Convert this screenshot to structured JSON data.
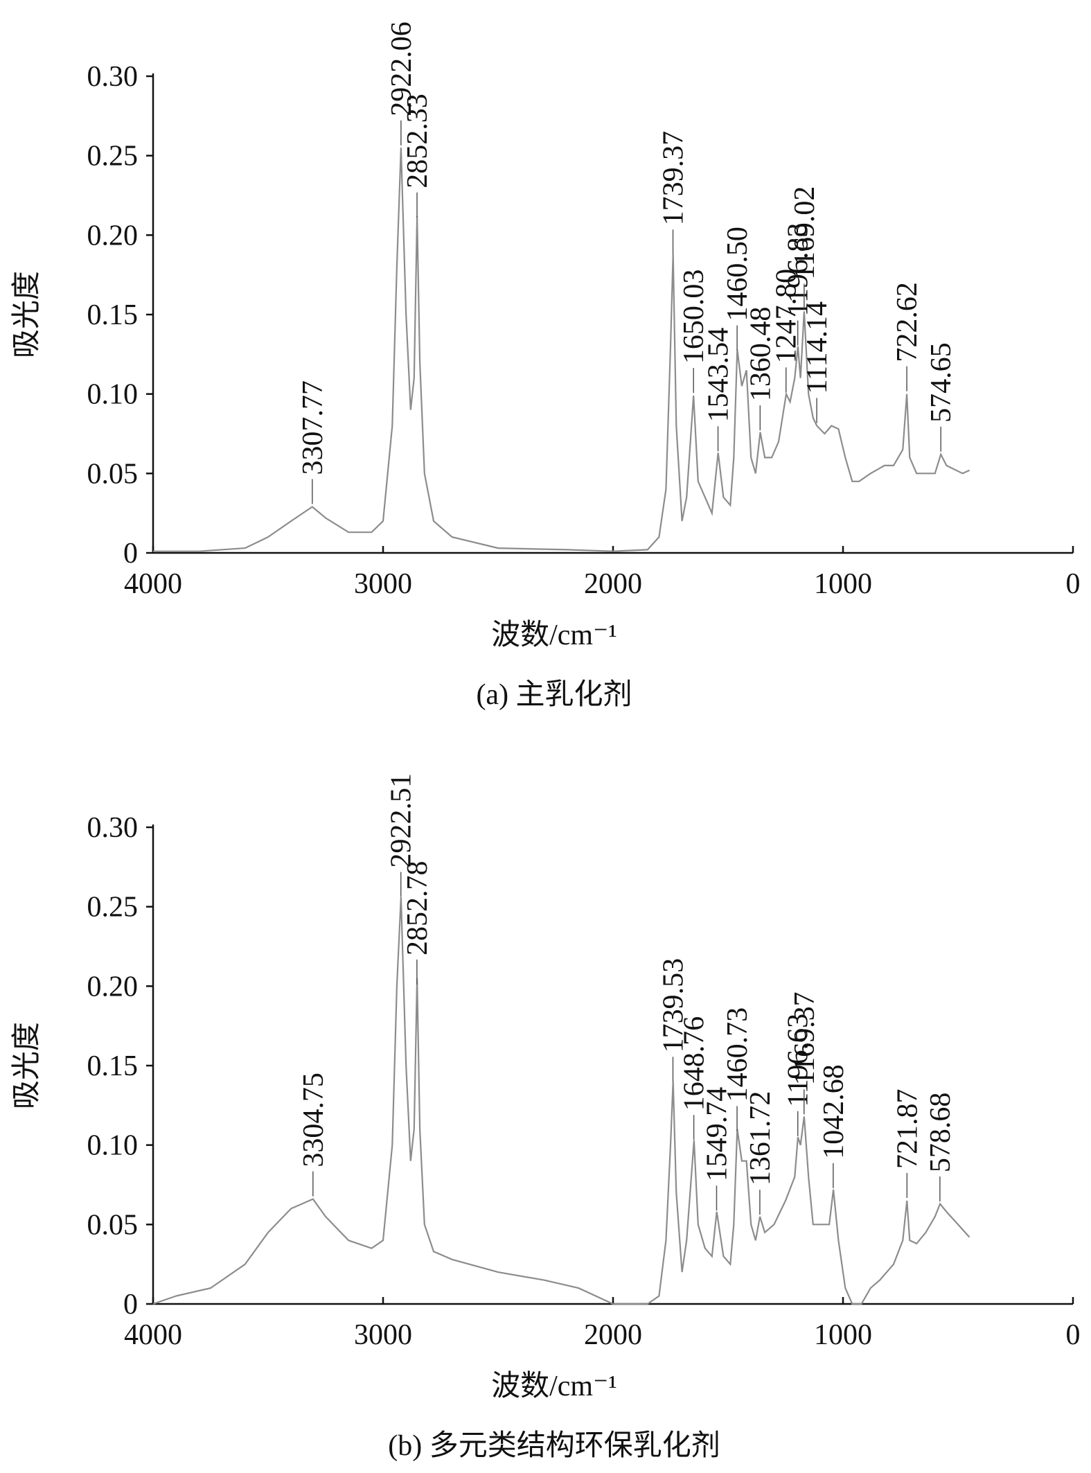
{
  "chart_data": [
    {
      "type": "line",
      "caption": "(a) 主乳化剂",
      "x_label": "波数/cm⁻¹",
      "y_label": "吸光度",
      "color": "#8c8c8c",
      "xlim": [
        4000,
        0
      ],
      "xticks": [
        4000,
        3000,
        2000,
        1000,
        0
      ],
      "ylim": [
        0,
        0.3
      ],
      "yticks": [
        0,
        0.05,
        {
          "value": 0.1,
          "label": "0.10"
        },
        0.15,
        {
          "value": 0.2,
          "label": "0.20"
        },
        0.25,
        {
          "value": 0.3,
          "label": "0.30"
        }
      ],
      "x": [
        4000,
        3800,
        3600,
        3500,
        3400,
        3307.77,
        3250,
        3150,
        3050,
        3000,
        2960,
        2940,
        2922,
        2900,
        2880,
        2865,
        2852,
        2840,
        2820,
        2780,
        2700,
        2500,
        2200,
        2000,
        1850,
        1800,
        1770,
        1750,
        1739,
        1725,
        1700,
        1680,
        1650,
        1630,
        1600,
        1570,
        1543,
        1520,
        1490,
        1475,
        1460,
        1440,
        1420,
        1400,
        1380,
        1360,
        1340,
        1310,
        1280,
        1247,
        1230,
        1210,
        1196,
        1185,
        1169,
        1150,
        1130,
        1114,
        1080,
        1050,
        1020,
        990,
        960,
        930,
        880,
        820,
        780,
        740,
        722.62,
        710,
        680,
        640,
        600,
        574.65,
        550,
        480,
        450
      ],
      "values": [
        0.001,
        0.001,
        0.003,
        0.01,
        0.02,
        0.029,
        0.022,
        0.013,
        0.013,
        0.02,
        0.08,
        0.18,
        0.255,
        0.15,
        0.09,
        0.11,
        0.212,
        0.12,
        0.05,
        0.02,
        0.01,
        0.003,
        0.002,
        0.001,
        0.002,
        0.01,
        0.04,
        0.13,
        0.188,
        0.08,
        0.02,
        0.035,
        0.099,
        0.045,
        0.035,
        0.025,
        0.063,
        0.035,
        0.03,
        0.06,
        0.128,
        0.105,
        0.115,
        0.06,
        0.05,
        0.076,
        0.06,
        0.06,
        0.07,
        0.1,
        0.095,
        0.11,
        0.13,
        0.11,
        0.152,
        0.1,
        0.085,
        0.08,
        0.075,
        0.08,
        0.078,
        0.06,
        0.045,
        0.045,
        0.05,
        0.055,
        0.055,
        0.065,
        0.1,
        0.06,
        0.05,
        0.05,
        0.05,
        0.062,
        0.055,
        0.05,
        0.052
      ],
      "annotations": [
        "3307.77",
        "2922.06",
        "2852.33",
        "1739.37",
        "1650.03",
        "1543.54",
        "1460.50",
        "1360.48",
        "1247.80",
        "1196.83",
        "1169.02",
        "1114.14",
        "722.62",
        "574.65"
      ]
    },
    {
      "type": "line",
      "caption": "(b) 多元类结构环保乳化剂",
      "x_label": "波数/cm⁻¹",
      "y_label": "吸光度",
      "color": "#8c8c8c",
      "xlim": [
        4000,
        0
      ],
      "xticks": [
        4000,
        3000,
        2000,
        1000,
        0
      ],
      "ylim": [
        0,
        0.3
      ],
      "yticks": [
        0,
        0.05,
        {
          "value": 0.1,
          "label": "0.10"
        },
        0.15,
        {
          "value": 0.2,
          "label": "0.20"
        },
        0.25,
        {
          "value": 0.3,
          "label": "0.30"
        }
      ],
      "x": [
        4000,
        3900,
        3750,
        3600,
        3500,
        3400,
        3304.75,
        3250,
        3150,
        3050,
        3000,
        2960,
        2940,
        2922,
        2900,
        2880,
        2865,
        2852,
        2840,
        2820,
        2780,
        2700,
        2500,
        2300,
        2150,
        2000,
        1850,
        1800,
        1770,
        1750,
        1739,
        1725,
        1700,
        1680,
        1648,
        1630,
        1600,
        1570,
        1549,
        1520,
        1490,
        1475,
        1460,
        1440,
        1420,
        1400,
        1380,
        1361,
        1340,
        1300,
        1250,
        1210,
        1196,
        1185,
        1169,
        1150,
        1130,
        1100,
        1060,
        1042,
        1020,
        990,
        960,
        920,
        880,
        840,
        780,
        740,
        721.87,
        710,
        680,
        640,
        600,
        578,
        550,
        500,
        450
      ],
      "values": [
        0,
        0.005,
        0.01,
        0.025,
        0.045,
        0.06,
        0.066,
        0.055,
        0.04,
        0.035,
        0.04,
        0.1,
        0.2,
        0.256,
        0.15,
        0.09,
        0.11,
        0.205,
        0.11,
        0.05,
        0.033,
        0.028,
        0.02,
        0.015,
        0.01,
        0,
        0,
        0.005,
        0.04,
        0.1,
        0.14,
        0.07,
        0.02,
        0.04,
        0.103,
        0.05,
        0.035,
        0.03,
        0.058,
        0.03,
        0.025,
        0.05,
        0.11,
        0.09,
        0.09,
        0.05,
        0.04,
        0.055,
        0.045,
        0.05,
        0.065,
        0.08,
        0.105,
        0.1,
        0.118,
        0.08,
        0.05,
        0.05,
        0.05,
        0.072,
        0.04,
        0.01,
        0,
        0,
        0.01,
        0.015,
        0.025,
        0.04,
        0.065,
        0.04,
        0.038,
        0.045,
        0.055,
        0.063,
        0.058,
        0.05,
        0.042
      ],
      "annotations": [
        "3304.75",
        "2922.51",
        "2852.78",
        "1739.53",
        "1648.76",
        "1549.74",
        "1460.73",
        "1361.72",
        "1196.63",
        "1169.37",
        "1042.68",
        "721.87",
        "578.68"
      ]
    }
  ]
}
